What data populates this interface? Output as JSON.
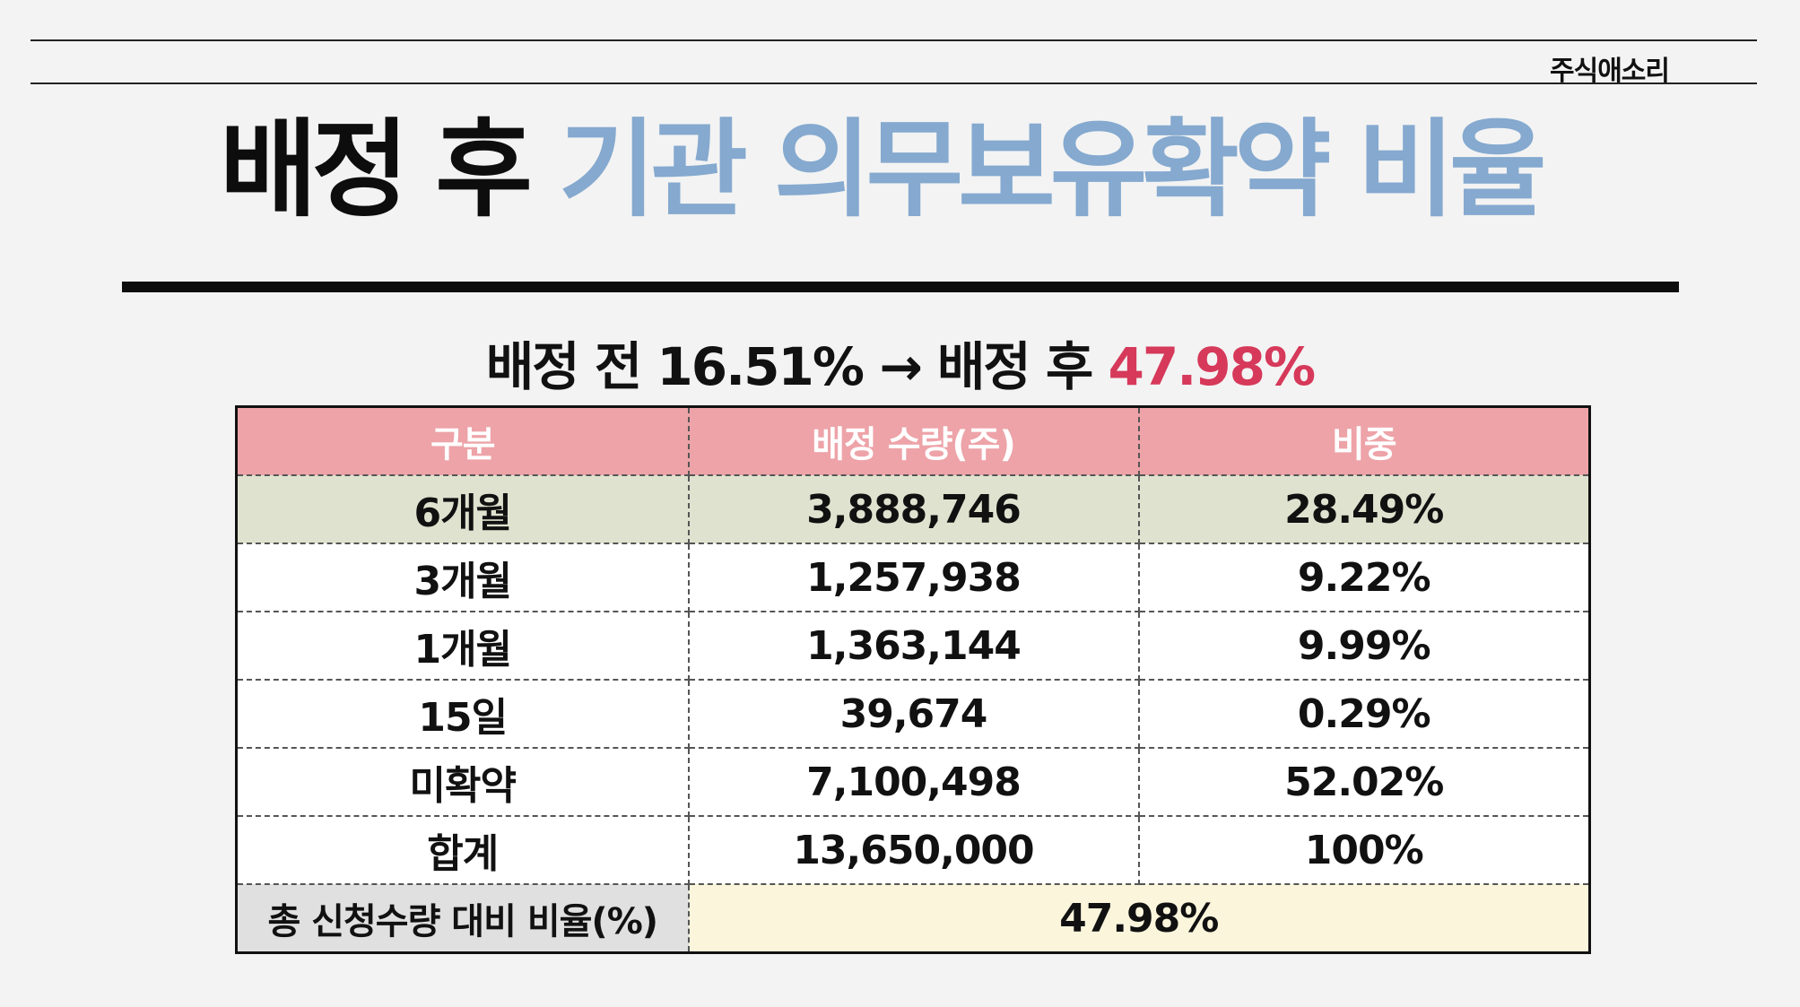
{
  "header": {
    "brand": "주식애소리"
  },
  "title": {
    "part1": "배정 후",
    "part2": "기관 의무보유확약 비율"
  },
  "subtitle": {
    "before_label": "배정 전",
    "before_value": "16.51%",
    "arrow": "→",
    "after_label": "배정 후",
    "after_value": "47.98%"
  },
  "table": {
    "headers": [
      "구분",
      "배정 수량(주)",
      "비중"
    ],
    "rows": [
      {
        "label": "6개월",
        "quantity": "3,888,746",
        "ratio": "28.49%"
      },
      {
        "label": "3개월",
        "quantity": "1,257,938",
        "ratio": "9.22%"
      },
      {
        "label": "1개월",
        "quantity": "1,363,144",
        "ratio": "9.99%"
      },
      {
        "label": "15일",
        "quantity": "39,674",
        "ratio": "0.29%"
      },
      {
        "label": "미확약",
        "quantity": "7,100,498",
        "ratio": "52.02%"
      },
      {
        "label": "합계",
        "quantity": "13,650,000",
        "ratio": "100%"
      }
    ],
    "footer": {
      "label": "총 신청수량 대비 비율(%)",
      "value": "47.98%"
    }
  },
  "colors": {
    "title_blue": "#85a9cf",
    "accent_red": "#d6395a",
    "header_pink": "#eda3a8",
    "highlight_row": "#dfe2cf",
    "footer_value_bg": "#fbf5dc"
  }
}
